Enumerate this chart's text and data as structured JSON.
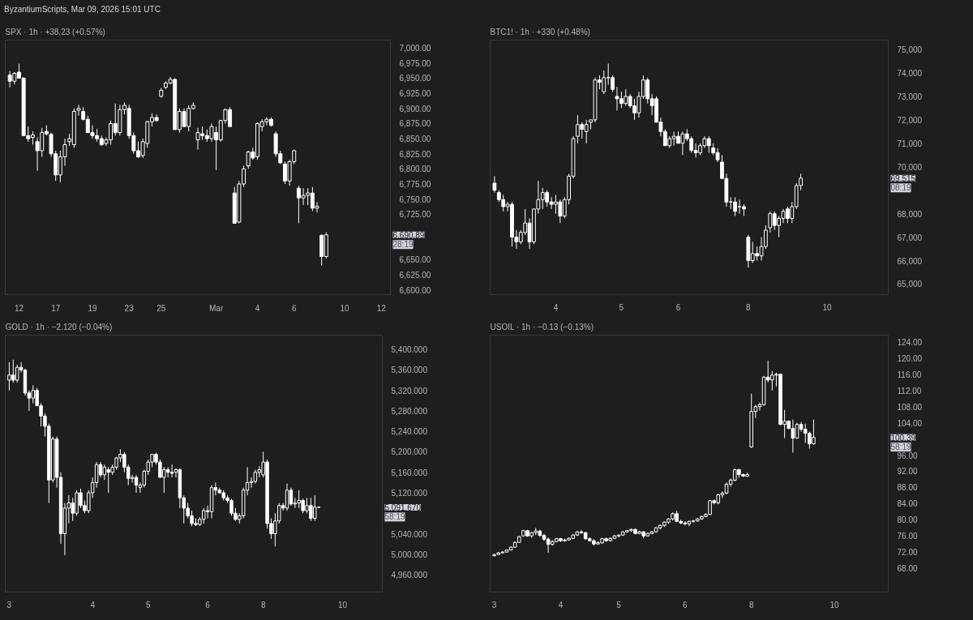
{
  "chart_data": [
    {
      "type": "candlestick",
      "title": "SPX · 1h · +38.23 (+0.57%)",
      "subtitle": "ByzantiumScripts, Mar 09, 2026 15:01 UTC",
      "annotations": [
        "6,690.89\n28:19"
      ],
      "color": "#ffffff",
      "categories": [
        null,
        null,
        "12",
        null,
        null,
        null,
        null,
        null,
        null,
        null,
        "17",
        null,
        null,
        null,
        null,
        null,
        null,
        null,
        "19",
        null,
        null,
        null,
        null,
        null,
        null,
        null,
        "23",
        null,
        null,
        null,
        null,
        null,
        null,
        "25",
        null,
        null,
        null,
        null,
        null,
        null,
        null,
        null,
        null,
        null,
        null,
        "Mar",
        null,
        null,
        null,
        null,
        null,
        null,
        null,
        null,
        "4",
        null,
        null,
        null,
        null,
        null,
        null,
        null,
        "6",
        null,
        null,
        null,
        null,
        null,
        null,
        null,
        null,
        null,
        null,
        "10",
        null,
        null,
        null,
        null,
        null,
        null,
        null,
        "12"
      ],
      "ohlc": [
        [
          6955,
          6962,
          6935,
          6945
        ],
        [
          6945,
          6960,
          6940,
          6958
        ],
        [
          6960,
          6974,
          6950,
          6950
        ],
        [
          6950,
          6952,
          6855,
          6855
        ],
        [
          6855,
          6870,
          6845,
          6850
        ],
        [
          6852,
          6862,
          6840,
          6856
        ],
        [
          6845,
          6852,
          6797,
          6830
        ],
        [
          6830,
          6868,
          6820,
          6860
        ],
        [
          6862,
          6872,
          6855,
          6858
        ],
        [
          6857,
          6860,
          6820,
          6825
        ],
        [
          6825,
          6830,
          6780,
          6790
        ],
        [
          6790,
          6830,
          6778,
          6820
        ],
        [
          6820,
          6850,
          6805,
          6840
        ],
        [
          6845,
          6858,
          6838,
          6850
        ],
        [
          6840,
          6900,
          6835,
          6895
        ],
        [
          6897,
          6906,
          6888,
          6900
        ],
        [
          6895,
          6902,
          6880,
          6882
        ],
        [
          6882,
          6888,
          6860,
          6860
        ],
        [
          6860,
          6872,
          6850,
          6855
        ],
        [
          6855,
          6866,
          6845,
          6850
        ],
        [
          6850,
          6855,
          6838,
          6840
        ],
        [
          6842,
          6852,
          6838,
          6848
        ],
        [
          6848,
          6880,
          6840,
          6875
        ],
        [
          6875,
          6908,
          6855,
          6860
        ],
        [
          6860,
          6906,
          6855,
          6898
        ],
        [
          6898,
          6910,
          6890,
          6905
        ],
        [
          6900,
          6906,
          6850,
          6855
        ],
        [
          6855,
          6860,
          6825,
          6830
        ],
        [
          6830,
          6845,
          6818,
          6820
        ],
        [
          6822,
          6850,
          6818,
          6845
        ],
        [
          6842,
          6880,
          6835,
          6878
        ],
        [
          6878,
          6892,
          6870,
          6885
        ],
        [
          6885,
          6890,
          6878,
          6880
        ],
        [
          6920,
          6934,
          6918,
          6930
        ],
        [
          6935,
          6945,
          6932,
          6942
        ],
        [
          6942,
          6952,
          6940,
          6948
        ],
        [
          6948,
          6950,
          6865,
          6865
        ],
        [
          6865,
          6900,
          6860,
          6895
        ],
        [
          6895,
          6900,
          6870,
          6870
        ],
        [
          6870,
          6905,
          6862,
          6900
        ],
        [
          6900,
          6910,
          6898,
          6905
        ],
        [
          6848,
          6868,
          6832,
          6860
        ],
        [
          6858,
          6870,
          6848,
          6855
        ],
        [
          6855,
          6865,
          6845,
          6850
        ],
        [
          6850,
          6875,
          6845,
          6870
        ],
        [
          6860,
          6870,
          6798,
          6848
        ],
        [
          6848,
          6880,
          6845,
          6880
        ],
        [
          6880,
          6900,
          6875,
          6898
        ],
        [
          6898,
          6902,
          6870,
          6870
        ],
        [
          6760,
          6770,
          6710,
          6710
        ],
        [
          6712,
          6780,
          6710,
          6775
        ],
        [
          6775,
          6805,
          6770,
          6800
        ],
        [
          6805,
          6830,
          6800,
          6828
        ],
        [
          6828,
          6835,
          6815,
          6818
        ],
        [
          6820,
          6877,
          6815,
          6875
        ],
        [
          6870,
          6882,
          6862,
          6878
        ],
        [
          6878,
          6885,
          6872,
          6882
        ],
        [
          6882,
          6885,
          6870,
          6872
        ],
        [
          6858,
          6862,
          6820,
          6825
        ],
        [
          6825,
          6830,
          6808,
          6810
        ],
        [
          6808,
          6812,
          6775,
          6780
        ],
        [
          6780,
          6815,
          6772,
          6812
        ],
        [
          6812,
          6832,
          6808,
          6830
        ],
        [
          6768,
          6772,
          6710,
          6752
        ],
        [
          6752,
          6768,
          6740,
          6756
        ],
        [
          6756,
          6768,
          6740,
          6760
        ],
        [
          6760,
          6770,
          6730,
          6735
        ],
        [
          6735,
          6745,
          6728,
          6738
        ],
        [
          6690,
          6692,
          6640,
          6655
        ],
        [
          6655,
          6695,
          6652,
          6690.89
        ],
        null,
        null,
        null,
        null,
        null,
        null,
        null,
        null,
        null,
        null,
        null,
        null
      ],
      "ylim": [
        6592,
        7013
      ],
      "yticks": [
        {
          "value": 6600,
          "label": "6,600.00"
        },
        {
          "value": 6625,
          "label": "6,625.00"
        },
        {
          "value": 6650,
          "label": "6,650.00"
        },
        {
          "value": 6725,
          "label": "6,725.00"
        },
        {
          "value": 6750,
          "label": "6,750.00"
        },
        {
          "value": 6775,
          "label": "6,775.00"
        },
        {
          "value": 6800,
          "label": "6,800.00"
        },
        {
          "value": 6825,
          "label": "6,825.00"
        },
        {
          "value": 6850,
          "label": "6,850.00"
        },
        {
          "value": 6875,
          "label": "6,875.00"
        },
        {
          "value": 6900,
          "label": "6,900.00"
        },
        {
          "value": 6925,
          "label": "6,925.00"
        },
        {
          "value": 6950,
          "label": "6,950.00"
        },
        {
          "value": 6975,
          "label": "6,975.00"
        },
        {
          "value": 7000,
          "label": "7,000.00"
        }
      ]
    },
    {
      "type": "candlestick",
      "title": "BTC1! · 1h · +330 (+0.48%)",
      "annotations": [
        "69,515\n08:19"
      ],
      "color": "#ffffff",
      "categories": [
        null,
        null,
        null,
        null,
        null,
        null,
        null,
        null,
        null,
        null,
        null,
        null,
        null,
        null,
        "4",
        null,
        null,
        null,
        null,
        null,
        null,
        null,
        null,
        null,
        null,
        null,
        null,
        null,
        null,
        "5",
        null,
        null,
        null,
        null,
        null,
        null,
        null,
        null,
        null,
        null,
        null,
        null,
        "6",
        null,
        null,
        null,
        null,
        null,
        null,
        null,
        null,
        null,
        null,
        null,
        null,
        null,
        null,
        null,
        "8",
        null,
        null,
        null,
        null,
        null,
        null,
        null,
        null,
        null,
        null,
        null,
        null,
        null,
        null,
        null,
        null,
        null,
        "10",
        null,
        null,
        null,
        null,
        null,
        null,
        null,
        null,
        null,
        null,
        null,
        null
      ],
      "ohlc": [
        [
          69300,
          69600,
          68900,
          69000
        ],
        [
          68900,
          69000,
          68500,
          68600
        ],
        [
          68600,
          68800,
          68100,
          68300
        ],
        [
          68300,
          68500,
          68100,
          68400
        ],
        [
          68400,
          68500,
          66600,
          67000
        ],
        [
          67000,
          67300,
          66500,
          66800
        ],
        [
          66800,
          67300,
          66700,
          67200
        ],
        [
          67200,
          68200,
          67100,
          67600
        ],
        [
          67600,
          67800,
          66500,
          66800
        ],
        [
          66800,
          68200,
          66700,
          68200
        ],
        [
          68200,
          69400,
          68000,
          68600
        ],
        [
          68600,
          69100,
          68200,
          68900
        ],
        [
          68900,
          69000,
          68300,
          68500
        ],
        [
          68500,
          68700,
          68200,
          68400
        ],
        [
          68400,
          68800,
          68000,
          68500
        ],
        [
          68500,
          68600,
          67600,
          67900
        ],
        [
          67900,
          68700,
          67800,
          68600
        ],
        [
          68600,
          69700,
          68400,
          69600
        ],
        [
          69600,
          71300,
          69500,
          71200
        ],
        [
          71300,
          72200,
          71000,
          71800
        ],
        [
          71800,
          71900,
          71200,
          71600
        ],
        [
          71500,
          72000,
          71000,
          71800
        ],
        [
          71900,
          72000,
          71600,
          72000
        ],
        [
          72000,
          73800,
          71900,
          73700
        ],
        [
          73700,
          73900,
          73300,
          73600
        ],
        [
          73200,
          74100,
          73100,
          73800
        ],
        [
          73800,
          74400,
          73500,
          73800
        ],
        [
          73800,
          73900,
          73200,
          73300
        ],
        [
          73000,
          73400,
          72400,
          72900
        ],
        [
          72900,
          73200,
          72500,
          72700
        ],
        [
          72700,
          73300,
          72600,
          73000
        ],
        [
          73000,
          73100,
          72500,
          72600
        ],
        [
          72600,
          72900,
          72000,
          72300
        ],
        [
          72300,
          73200,
          72100,
          73000
        ],
        [
          73000,
          73900,
          72900,
          73700
        ],
        [
          73700,
          73800,
          72700,
          72900
        ],
        [
          72900,
          73100,
          72200,
          72600
        ],
        [
          72900,
          73000,
          71900,
          71900
        ],
        [
          71900,
          72100,
          71300,
          71500
        ],
        [
          71500,
          71600,
          70900,
          70900
        ],
        [
          70900,
          71300,
          70800,
          71200
        ],
        [
          71200,
          71500,
          70900,
          71300
        ],
        [
          71300,
          71500,
          71000,
          71000
        ],
        [
          71000,
          71500,
          70500,
          71400
        ],
        [
          71400,
          71600,
          71100,
          71200
        ],
        [
          71200,
          71300,
          70600,
          70700
        ],
        [
          70700,
          71000,
          70400,
          70600
        ],
        [
          70600,
          71000,
          70500,
          70900
        ],
        [
          70900,
          71300,
          70800,
          71200
        ],
        [
          71200,
          71300,
          70600,
          70900
        ],
        [
          70800,
          71000,
          70500,
          70600
        ],
        [
          70600,
          70800,
          70200,
          70300
        ],
        [
          70200,
          70500,
          69500,
          69500
        ],
        [
          69500,
          69700,
          68300,
          68500
        ],
        [
          68500,
          68700,
          68200,
          68500
        ],
        [
          68500,
          68700,
          67900,
          68100
        ],
        [
          68300,
          68600,
          68000,
          68300
        ],
        [
          68300,
          68400,
          67900,
          68200
        ],
        [
          67000,
          67100,
          65700,
          66000
        ],
        [
          66000,
          66800,
          65900,
          66300
        ],
        [
          66300,
          66600,
          66000,
          66200
        ],
        [
          66200,
          67000,
          66000,
          66600
        ],
        [
          66600,
          67500,
          66500,
          67300
        ],
        [
          67400,
          68100,
          67200,
          68000
        ],
        [
          68000,
          68100,
          67300,
          67500
        ],
        [
          67500,
          67900,
          67000,
          67800
        ],
        [
          67800,
          68200,
          67600,
          68100
        ],
        [
          68200,
          68300,
          67600,
          67800
        ],
        [
          67800,
          68500,
          67600,
          68300
        ],
        [
          68300,
          69300,
          68200,
          69200
        ],
        [
          69200,
          69700,
          69000,
          69515
        ],
        null,
        null,
        null,
        null,
        null,
        null,
        null,
        null,
        null,
        null,
        null,
        null,
        null,
        null,
        null,
        null,
        null,
        null
      ],
      "ylim": [
        64550,
        75400
      ],
      "yticks": [
        {
          "value": 65000,
          "label": "65,000"
        },
        {
          "value": 66000,
          "label": "66,000"
        },
        {
          "value": 67000,
          "label": "67,000"
        },
        {
          "value": 68000,
          "label": "68,000"
        },
        {
          "value": 70000,
          "label": "70,000"
        },
        {
          "value": 71000,
          "label": "71,000"
        },
        {
          "value": 72000,
          "label": "72,000"
        },
        {
          "value": 73000,
          "label": "73,000"
        },
        {
          "value": 74000,
          "label": "74,000"
        },
        {
          "value": 75000,
          "label": "75,000"
        }
      ]
    },
    {
      "type": "candlestick",
      "title": "GOLD · 1h · −2.120 (−0.04%)",
      "annotations": [
        "5,091.670\n58:19"
      ],
      "color": "#ffffff",
      "categories": [
        "3",
        null,
        null,
        null,
        null,
        null,
        null,
        null,
        null,
        null,
        null,
        null,
        null,
        null,
        null,
        null,
        null,
        null,
        null,
        null,
        null,
        "4",
        null,
        null,
        null,
        null,
        null,
        null,
        null,
        null,
        null,
        null,
        null,
        null,
        null,
        "5",
        null,
        null,
        null,
        null,
        null,
        null,
        null,
        null,
        null,
        null,
        null,
        null,
        null,
        null,
        "6",
        null,
        null,
        null,
        null,
        null,
        null,
        null,
        null,
        null,
        null,
        null,
        null,
        null,
        "8",
        null,
        null,
        null,
        null,
        null,
        null,
        null,
        null,
        null,
        null,
        null,
        null,
        null,
        null,
        null,
        null,
        null,
        null,
        null,
        "10",
        null,
        null,
        null,
        null,
        null,
        null,
        null,
        null
      ],
      "ohlc": [
        [
          5340,
          5375,
          5320,
          5350
        ],
        [
          5350,
          5380,
          5335,
          5340
        ],
        [
          5340,
          5370,
          5335,
          5365
        ],
        [
          5365,
          5375,
          5355,
          5360
        ],
        [
          5360,
          5362,
          5310,
          5315
        ],
        [
          5315,
          5320,
          5280,
          5305
        ],
        [
          5305,
          5330,
          5295,
          5320
        ],
        [
          5320,
          5325,
          5290,
          5290
        ],
        [
          5290,
          5295,
          5250,
          5270
        ],
        [
          5270,
          5275,
          5230,
          5250
        ],
        [
          5250,
          5255,
          5100,
          5145
        ],
        [
          5145,
          5230,
          5140,
          5225
        ],
        [
          5225,
          5230,
          5130,
          5150
        ],
        [
          5150,
          5160,
          5020,
          5040
        ],
        [
          5040,
          5100,
          4998,
          5090
        ],
        [
          5090,
          5115,
          5060,
          5100
        ],
        [
          5100,
          5110,
          5065,
          5080
        ],
        [
          5080,
          5125,
          5075,
          5120
        ],
        [
          5120,
          5128,
          5090,
          5095
        ],
        [
          5095,
          5105,
          5080,
          5085
        ],
        [
          5085,
          5125,
          5080,
          5120
        ],
        [
          5120,
          5150,
          5110,
          5140
        ],
        [
          5140,
          5180,
          5130,
          5175
        ],
        [
          5175,
          5180,
          5150,
          5155
        ],
        [
          5155,
          5175,
          5145,
          5170
        ],
        [
          5165,
          5170,
          5120,
          5160
        ],
        [
          5160,
          5175,
          5155,
          5170
        ],
        [
          5170,
          5190,
          5165,
          5188
        ],
        [
          5188,
          5205,
          5180,
          5195
        ],
        [
          5195,
          5200,
          5160,
          5170
        ],
        [
          5170,
          5175,
          5135,
          5148
        ],
        [
          5148,
          5155,
          5140,
          5150
        ],
        [
          5150,
          5155,
          5120,
          5135
        ],
        [
          5130,
          5140,
          5120,
          5135
        ],
        [
          5135,
          5165,
          5130,
          5162
        ],
        [
          5162,
          5185,
          5155,
          5180
        ],
        [
          5180,
          5195,
          5170,
          5195
        ],
        [
          5195,
          5198,
          5175,
          5180
        ],
        [
          5180,
          5185,
          5150,
          5150
        ],
        [
          5150,
          5170,
          5120,
          5165
        ],
        [
          5165,
          5170,
          5150,
          5160
        ],
        [
          5160,
          5175,
          5150,
          5158
        ],
        [
          5160,
          5168,
          5150,
          5165
        ],
        [
          5165,
          5168,
          5090,
          5110
        ],
        [
          5110,
          5115,
          5060,
          5090
        ],
        [
          5090,
          5100,
          5070,
          5075
        ],
        [
          5075,
          5085,
          5055,
          5060
        ],
        [
          5060,
          5070,
          5055,
          5058
        ],
        [
          5058,
          5072,
          5055,
          5068
        ],
        [
          5068,
          5090,
          5060,
          5085
        ],
        [
          5085,
          5095,
          5070,
          5083
        ],
        [
          5083,
          5135,
          5070,
          5130
        ],
        [
          5130,
          5140,
          5115,
          5125
        ],
        [
          5125,
          5130,
          5118,
          5120
        ],
        [
          5120,
          5125,
          5105,
          5110
        ],
        [
          5110,
          5115,
          5100,
          5105
        ],
        [
          5105,
          5108,
          5075,
          5080
        ],
        [
          5080,
          5090,
          5065,
          5068
        ],
        [
          5068,
          5080,
          5060,
          5075
        ],
        [
          5075,
          5130,
          5070,
          5125
        ],
        [
          5125,
          5170,
          5115,
          5140
        ],
        [
          5140,
          5150,
          5130,
          5142
        ],
        [
          5142,
          5165,
          5138,
          5160
        ],
        [
          5160,
          5172,
          5150,
          5165
        ],
        [
          5155,
          5200,
          5150,
          5180
        ],
        [
          5180,
          5185,
          5050,
          5060
        ],
        [
          5060,
          5070,
          5030,
          5040
        ],
        [
          5040,
          5080,
          5015,
          5065
        ],
        [
          5065,
          5100,
          5060,
          5095
        ],
        [
          5095,
          5100,
          5085,
          5090
        ],
        [
          5090,
          5138,
          5085,
          5125
        ],
        [
          5125,
          5130,
          5095,
          5098
        ],
        [
          5098,
          5110,
          5090,
          5100
        ],
        [
          5100,
          5125,
          5090,
          5105
        ],
        [
          5105,
          5108,
          5080,
          5085
        ],
        [
          5085,
          5110,
          5080,
          5095
        ],
        [
          5095,
          5110,
          5065,
          5070
        ],
        [
          5070,
          5115,
          5065,
          5092
        ],
        [
          5092,
          5093,
          5090,
          5091.67
        ],
        null,
        null,
        null,
        null,
        null,
        null,
        null,
        null,
        null,
        null,
        null,
        null,
        null,
        null
      ],
      "ylim": [
        4926,
        5428
      ],
      "yticks": [
        {
          "value": 4960,
          "label": "4,960.000"
        },
        {
          "value": 5000,
          "label": "5,000.000"
        },
        {
          "value": 5040,
          "label": "5,040.000"
        },
        {
          "value": 5120,
          "label": "5,120.000"
        },
        {
          "value": 5160,
          "label": "5,160.000"
        },
        {
          "value": 5200,
          "label": "5,200.000"
        },
        {
          "value": 5240,
          "label": "5,240.000"
        },
        {
          "value": 5280,
          "label": "5,280.000"
        },
        {
          "value": 5320,
          "label": "5,320.000"
        },
        {
          "value": 5360,
          "label": "5,360.000"
        },
        {
          "value": 5400,
          "label": "5,400.000"
        }
      ]
    },
    {
      "type": "candlestick",
      "title": "USOIL · 1h · −0.13 (−0.13%)",
      "annotations": [
        "100.39\n58:19"
      ],
      "color": "#ffffff",
      "categories": [
        "3",
        null,
        null,
        null,
        null,
        null,
        null,
        null,
        null,
        null,
        null,
        null,
        null,
        null,
        null,
        null,
        "4",
        null,
        null,
        null,
        null,
        null,
        null,
        null,
        null,
        null,
        null,
        null,
        null,
        null,
        "5",
        null,
        null,
        null,
        null,
        null,
        null,
        null,
        null,
        null,
        null,
        null,
        null,
        null,
        null,
        null,
        "6",
        null,
        null,
        null,
        null,
        null,
        null,
        null,
        null,
        null,
        null,
        null,
        null,
        null,
        null,
        null,
        "8",
        null,
        null,
        null,
        null,
        null,
        null,
        null,
        null,
        null,
        null,
        null,
        null,
        null,
        null,
        null,
        null,
        null,
        null,
        null,
        "10",
        null,
        null,
        null,
        null,
        null,
        null,
        null,
        null,
        null,
        null,
        null
      ],
      "ohlc": [
        [
          71.1,
          71.5,
          70.9,
          71.4
        ],
        [
          71.4,
          72.0,
          71.3,
          71.8
        ],
        [
          71.8,
          72.2,
          71.7,
          72.0
        ],
        [
          72.0,
          72.6,
          71.9,
          72.5
        ],
        [
          72.5,
          73.4,
          72.4,
          73.2
        ],
        [
          73.2,
          74.6,
          73.1,
          74.4
        ],
        [
          74.4,
          76.0,
          74.3,
          75.8
        ],
        [
          76.0,
          77.5,
          75.8,
          77.3
        ],
        [
          77.3,
          77.5,
          75.8,
          76.0
        ],
        [
          76.0,
          77.0,
          75.5,
          76.8
        ],
        [
          76.8,
          78.0,
          76.2,
          77.2
        ],
        [
          77.2,
          77.5,
          75.8,
          76.1
        ],
        [
          76.1,
          76.5,
          74.8,
          75.2
        ],
        [
          75.2,
          75.6,
          71.8,
          73.9
        ],
        [
          73.9,
          75.0,
          73.6,
          74.6
        ],
        [
          74.6,
          75.5,
          74.4,
          75.3
        ],
        [
          75.3,
          75.5,
          74.5,
          74.8
        ],
        [
          74.8,
          75.3,
          74.5,
          75.0
        ],
        [
          75.0,
          75.6,
          74.8,
          75.4
        ],
        [
          75.4,
          76.4,
          75.2,
          76.2
        ],
        [
          76.2,
          77.2,
          76.0,
          77.0
        ],
        [
          77.0,
          77.4,
          76.5,
          76.8
        ],
        [
          76.8,
          77.0,
          75.0,
          75.3
        ],
        [
          75.3,
          75.6,
          74.6,
          74.8
        ],
        [
          74.8,
          75.2,
          73.6,
          74.0
        ],
        [
          74.0,
          74.7,
          73.8,
          74.3
        ],
        [
          74.3,
          75.5,
          74.0,
          75.3
        ],
        [
          75.3,
          75.6,
          74.6,
          74.8
        ],
        [
          74.8,
          75.6,
          74.6,
          75.4
        ],
        [
          75.4,
          76.2,
          75.2,
          76.0
        ],
        [
          76.0,
          76.4,
          75.6,
          76.2
        ],
        [
          76.2,
          77.2,
          76.0,
          77.0
        ],
        [
          77.0,
          77.5,
          76.8,
          77.3
        ],
        [
          77.3,
          77.8,
          77.0,
          77.6
        ],
        [
          77.6,
          77.8,
          76.4,
          76.6
        ],
        [
          76.6,
          77.3,
          76.4,
          77.0
        ],
        [
          77.0,
          77.2,
          75.4,
          76.0
        ],
        [
          76.0,
          76.8,
          75.8,
          76.6
        ],
        [
          76.6,
          77.2,
          76.4,
          77.0
        ],
        [
          77.0,
          78.2,
          76.8,
          78.0
        ],
        [
          78.0,
          78.8,
          77.6,
          78.6
        ],
        [
          78.6,
          79.6,
          78.2,
          79.4
        ],
        [
          79.4,
          80.4,
          79.0,
          80.2
        ],
        [
          80.2,
          81.8,
          79.8,
          81.5
        ],
        [
          81.5,
          82.2,
          79.4,
          79.6
        ],
        [
          79.6,
          80.0,
          78.9,
          79.2
        ],
        [
          79.2,
          79.6,
          78.6,
          79.0
        ],
        [
          79.0,
          79.8,
          78.4,
          79.6
        ],
        [
          79.6,
          80.0,
          79.3,
          79.7
        ],
        [
          79.7,
          80.4,
          79.5,
          80.2
        ],
        [
          80.2,
          81.0,
          80.0,
          80.8
        ],
        [
          80.8,
          81.6,
          80.6,
          81.3
        ],
        [
          81.3,
          84.9,
          81.2,
          84.7
        ],
        [
          84.7,
          85.0,
          83.8,
          84.2
        ],
        [
          84.2,
          86.4,
          83.8,
          86.2
        ],
        [
          86.2,
          87.0,
          85.4,
          86.6
        ],
        [
          86.6,
          89.2,
          86.3,
          88.8
        ],
        [
          88.8,
          90.2,
          88.2,
          89.8
        ],
        [
          89.8,
          92.6,
          89.5,
          92.4
        ],
        [
          92.4,
          92.6,
          90.4,
          91.2
        ],
        [
          91.2,
          91.4,
          90.6,
          90.8
        ],
        [
          90.8,
          91.6,
          90.6,
          91.2
        ],
        [
          98.0,
          111.2,
          97.8,
          106.8
        ],
        [
          106.8,
          108.5,
          105.2,
          108.0
        ],
        [
          108.0,
          109.0,
          107.0,
          108.5
        ],
        [
          108.5,
          115.6,
          108.2,
          115.3
        ],
        [
          115.3,
          119.4,
          114.0,
          114.6
        ],
        [
          114.6,
          116.8,
          112.0,
          115.8
        ],
        [
          115.8,
          116.4,
          113.0,
          116.0
        ],
        [
          116.0,
          116.2,
          103.4,
          103.6
        ],
        [
          103.6,
          107.2,
          100.2,
          104.4
        ],
        [
          104.4,
          104.6,
          102.4,
          102.6
        ],
        [
          102.6,
          104.8,
          96.6,
          100.2
        ],
        [
          100.2,
          104.0,
          100.0,
          103.6
        ],
        [
          103.6,
          104.2,
          101.8,
          102.4
        ],
        [
          102.4,
          103.8,
          99.0,
          101.4
        ],
        [
          101.4,
          101.8,
          97.6,
          98.8
        ],
        [
          98.8,
          104.8,
          98.6,
          100.39
        ],
        null,
        null,
        null,
        null,
        null,
        null,
        null,
        null,
        null,
        null,
        null,
        null,
        null,
        null,
        null,
        null
      ],
      "ylim": [
        62.1,
        125.7
      ],
      "yticks": [
        {
          "value": 68,
          "label": "68.00"
        },
        {
          "value": 72,
          "label": "72.00"
        },
        {
          "value": 76,
          "label": "76.00"
        },
        {
          "value": 80,
          "label": "80.00"
        },
        {
          "value": 84,
          "label": "84.00"
        },
        {
          "value": 88,
          "label": "88.00"
        },
        {
          "value": 92,
          "label": "92.00"
        },
        {
          "value": 96,
          "label": "96.00"
        },
        {
          "value": 104,
          "label": "104.00"
        },
        {
          "value": 108,
          "label": "108.00"
        },
        {
          "value": 112,
          "label": "112.00"
        },
        {
          "value": 116,
          "label": "116.00"
        },
        {
          "value": 120,
          "label": "120.00"
        },
        {
          "value": 124,
          "label": "124.00"
        }
      ]
    }
  ]
}
